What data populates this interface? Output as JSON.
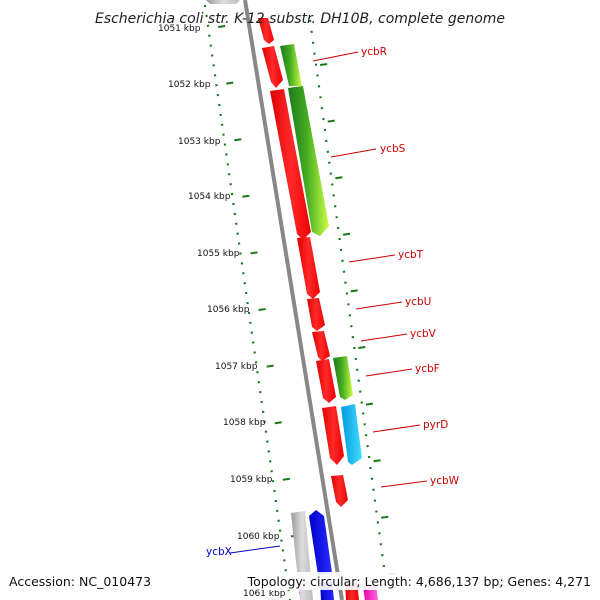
{
  "title": "Escherichia coli str. K-12 substr. DH10B, complete genome",
  "footer": {
    "accession": "Accession: NC_010473",
    "summary": "Topology: circular; Length: 4,686,137 bp; Genes: 4,271"
  },
  "ruler": {
    "ticks": [
      "1051 kbp",
      "1052 kbp",
      "1053 kbp",
      "1054 kbp",
      "1055 kbp",
      "1056 kbp",
      "1057 kbp",
      "1058 kbp",
      "1059 kbp",
      "1060 kbp",
      "1061 kbp"
    ]
  },
  "genes": [
    {
      "name": "ycbR",
      "color": "#cc0000"
    },
    {
      "name": "ycbS",
      "color": "#cc0000"
    },
    {
      "name": "ycbT",
      "color": "#cc0000"
    },
    {
      "name": "ycbU",
      "color": "#cc0000"
    },
    {
      "name": "ycbV",
      "color": "#cc0000"
    },
    {
      "name": "ycbF",
      "color": "#cc0000"
    },
    {
      "name": "pyrD",
      "color": "#cc0000"
    },
    {
      "name": "ycbW",
      "color": "#cc0000"
    },
    {
      "name": "ycbX",
      "color": "#0000cc"
    }
  ],
  "colors": {
    "cds_forward": "#ff0000",
    "cds_reverse_blue": "#0000ff",
    "green_dark": "#1a7a1a",
    "green_light": "#aaff33",
    "cyan": "#00bbee",
    "gray": "#c0c0c0",
    "magenta": "#ff33cc",
    "backbone": "#888888",
    "tick": "#1a7a1a"
  }
}
